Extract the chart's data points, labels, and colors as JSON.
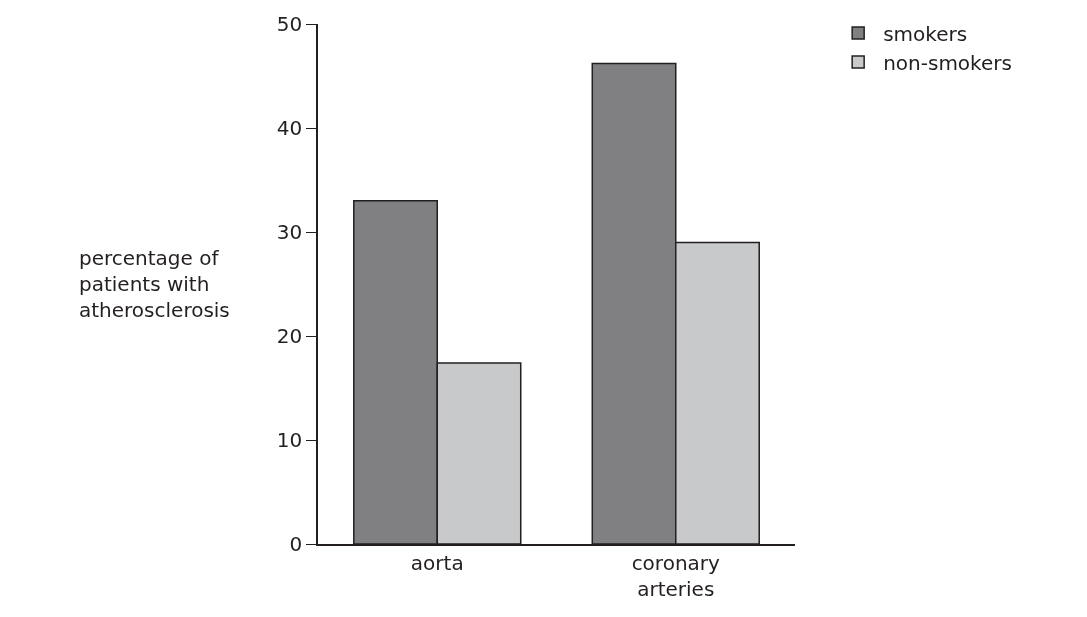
{
  "chart_data": {
    "type": "bar",
    "ylabel": "percentage of patients with atherosclerosis",
    "categories": [
      "aorta",
      "coronary arteries"
    ],
    "series": [
      {
        "name": "smokers",
        "color": "#808083",
        "values": [
          33,
          46.2
        ]
      },
      {
        "name": "non-smokers",
        "color": "#c8c9cb",
        "values": [
          17.4,
          29
        ]
      }
    ],
    "ylim": [
      0,
      50
    ],
    "yticks": [
      0,
      10,
      20,
      30,
      40,
      50
    ],
    "grid": false,
    "legend": "top right"
  }
}
